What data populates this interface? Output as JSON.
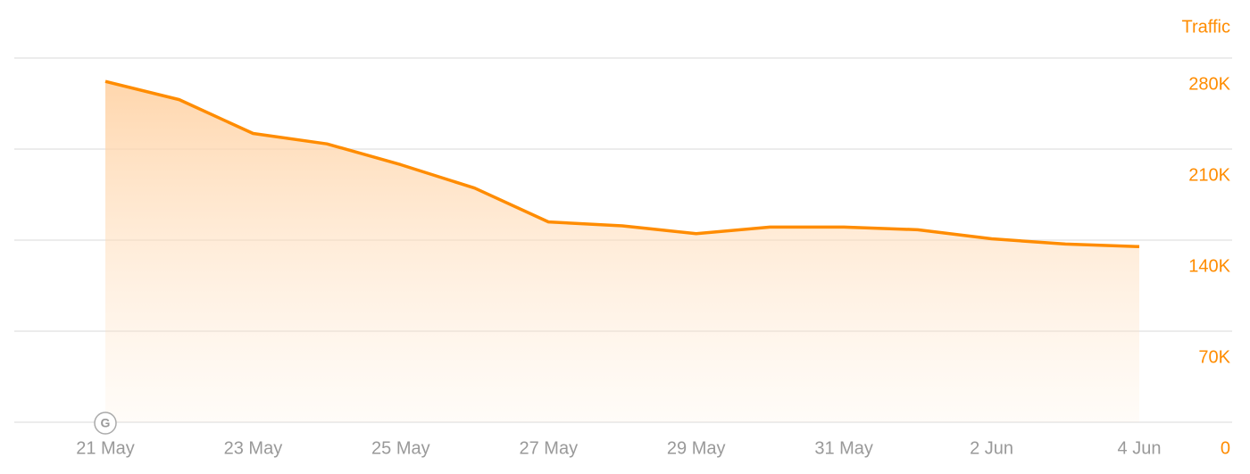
{
  "chart_data": {
    "type": "area",
    "y_axis_label": "Traffic",
    "marker_label": "G",
    "categories": [
      "21 May",
      null,
      "23 May",
      null,
      "25 May",
      null,
      "27 May",
      null,
      "29 May",
      null,
      "31 May",
      null,
      "2 Jun",
      null,
      "4 Jun"
    ],
    "values": [
      262000,
      248000,
      222000,
      214000,
      198000,
      180000,
      154000,
      151000,
      145000,
      150000,
      150000,
      148000,
      141000,
      137000,
      135000
    ],
    "color": "#ff8c00",
    "ylim": [
      0,
      280000
    ],
    "yticks": [
      0,
      {
        "value": 70000,
        "label": "70K"
      },
      {
        "value": 140000,
        "label": "140K"
      },
      {
        "value": 210000,
        "label": "210K"
      },
      {
        "value": 280000,
        "label": "280K"
      }
    ],
    "grid": true,
    "y_axis_side": "right"
  }
}
